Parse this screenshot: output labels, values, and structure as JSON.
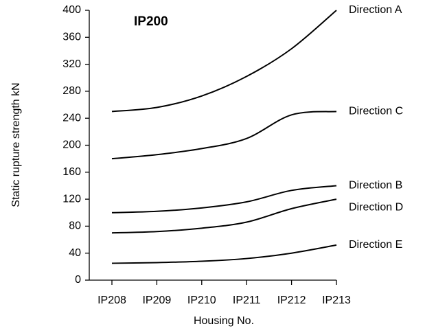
{
  "chart_data": {
    "type": "line",
    "title": "IP200",
    "x_label": "Housing No.",
    "y_label": "Static rupture strength  kN",
    "categories": [
      "IP208",
      "IP209",
      "IP210",
      "IP211",
      "IP212",
      "IP213"
    ],
    "series": [
      {
        "name": "Direction A",
        "color": "#000000",
        "values": [
          250,
          256,
          273,
          302,
          343,
          400
        ]
      },
      {
        "name": "Direction C",
        "color": "#000000",
        "values": [
          180,
          186,
          195,
          210,
          245,
          250
        ]
      },
      {
        "name": "Direction B",
        "color": "#000000",
        "values": [
          100,
          102,
          107,
          116,
          133,
          140
        ]
      },
      {
        "name": "Direction D",
        "color": "#000000",
        "values": [
          70,
          72,
          77,
          86,
          106,
          120
        ]
      },
      {
        "name": "Direction E",
        "color": "#000000",
        "values": [
          25,
          26,
          28,
          32,
          40,
          52
        ]
      }
    ],
    "ylim": [
      0,
      400
    ],
    "yticks": [
      0,
      40,
      80,
      120,
      160,
      200,
      240,
      280,
      320,
      360,
      400
    ],
    "grid": false
  }
}
